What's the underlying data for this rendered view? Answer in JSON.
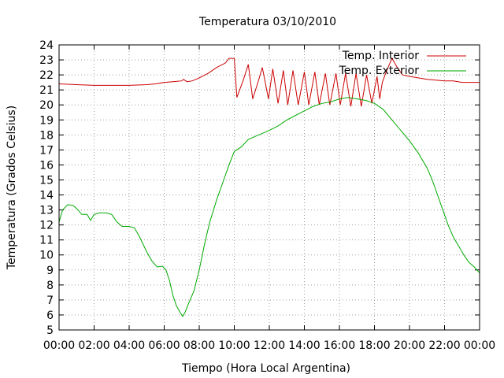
{
  "chart_data": {
    "type": "line",
    "title": "Temperatura 03/10/2010",
    "xlabel": "Tiempo (Hora Local Argentina)",
    "ylabel": "Temperatura (Grados Celsius)",
    "x_unit": "hours",
    "xlim": [
      0,
      24
    ],
    "ylim": [
      5,
      24
    ],
    "x_ticks": [
      {
        "value": 0,
        "label": "00:00"
      },
      {
        "value": 2,
        "label": "02:00"
      },
      {
        "value": 4,
        "label": "04:00"
      },
      {
        "value": 6,
        "label": "06:00"
      },
      {
        "value": 8,
        "label": "08:00"
      },
      {
        "value": 10,
        "label": "10:00"
      },
      {
        "value": 12,
        "label": "12:00"
      },
      {
        "value": 14,
        "label": "14:00"
      },
      {
        "value": 16,
        "label": "16:00"
      },
      {
        "value": 18,
        "label": "18:00"
      },
      {
        "value": 20,
        "label": "20:00"
      },
      {
        "value": 22,
        "label": "22:00"
      },
      {
        "value": 24,
        "label": "00:00"
      }
    ],
    "y_ticks": [
      {
        "value": 5,
        "label": "5"
      },
      {
        "value": 6,
        "label": "6"
      },
      {
        "value": 7,
        "label": "7"
      },
      {
        "value": 8,
        "label": "8"
      },
      {
        "value": 9,
        "label": "9"
      },
      {
        "value": 10,
        "label": "10"
      },
      {
        "value": 11,
        "label": "11"
      },
      {
        "value": 12,
        "label": "12"
      },
      {
        "value": 13,
        "label": "13"
      },
      {
        "value": 14,
        "label": "14"
      },
      {
        "value": 15,
        "label": "15"
      },
      {
        "value": 16,
        "label": "16"
      },
      {
        "value": 17,
        "label": "17"
      },
      {
        "value": 18,
        "label": "18"
      },
      {
        "value": 19,
        "label": "19"
      },
      {
        "value": 20,
        "label": "20"
      },
      {
        "value": 21,
        "label": "21"
      },
      {
        "value": 22,
        "label": "22"
      },
      {
        "value": 23,
        "label": "23"
      },
      {
        "value": 24,
        "label": "24"
      }
    ],
    "grid": true,
    "legend_position": "top-right",
    "series": [
      {
        "name": "Temp. Interior",
        "color": "#cc0000",
        "points": [
          [
            0.0,
            21.4
          ],
          [
            1.0,
            21.35
          ],
          [
            2.0,
            21.3
          ],
          [
            3.0,
            21.3
          ],
          [
            4.0,
            21.3
          ],
          [
            5.0,
            21.35
          ],
          [
            5.5,
            21.4
          ],
          [
            6.0,
            21.5
          ],
          [
            6.5,
            21.55
          ],
          [
            7.0,
            21.6
          ],
          [
            7.1,
            21.7
          ],
          [
            7.3,
            21.55
          ],
          [
            7.6,
            21.6
          ],
          [
            8.0,
            21.8
          ],
          [
            8.5,
            22.1
          ],
          [
            9.0,
            22.5
          ],
          [
            9.5,
            22.8
          ],
          [
            9.7,
            23.1
          ],
          [
            10.0,
            23.1
          ],
          [
            10.15,
            20.5
          ],
          [
            10.5,
            21.6
          ],
          [
            10.8,
            22.7
          ],
          [
            11.05,
            20.4
          ],
          [
            11.35,
            21.5
          ],
          [
            11.6,
            22.5
          ],
          [
            11.95,
            20.4
          ],
          [
            12.2,
            22.4
          ],
          [
            12.5,
            20.1
          ],
          [
            12.8,
            22.3
          ],
          [
            13.05,
            20.0
          ],
          [
            13.35,
            22.3
          ],
          [
            13.65,
            20.0
          ],
          [
            14.0,
            22.2
          ],
          [
            14.25,
            20.0
          ],
          [
            14.6,
            22.2
          ],
          [
            14.85,
            20.0
          ],
          [
            15.2,
            22.1
          ],
          [
            15.45,
            20.0
          ],
          [
            15.8,
            22.1
          ],
          [
            16.05,
            20.0
          ],
          [
            16.35,
            22.1
          ],
          [
            16.65,
            19.9
          ],
          [
            16.95,
            22.1
          ],
          [
            17.25,
            19.9
          ],
          [
            17.55,
            22.0
          ],
          [
            17.85,
            20.1
          ],
          [
            18.15,
            21.9
          ],
          [
            18.3,
            20.4
          ],
          [
            18.45,
            21.5
          ],
          [
            18.7,
            22.3
          ],
          [
            19.0,
            23.1
          ],
          [
            19.3,
            22.5
          ],
          [
            19.6,
            22.0
          ],
          [
            20.0,
            21.9
          ],
          [
            20.5,
            21.8
          ],
          [
            21.0,
            21.7
          ],
          [
            22.0,
            21.6
          ],
          [
            22.5,
            21.6
          ],
          [
            23.0,
            21.5
          ],
          [
            23.5,
            21.5
          ],
          [
            24.0,
            21.5
          ]
        ]
      },
      {
        "name": "Temp. Exterior",
        "color": "#00aa00",
        "points": [
          [
            0.0,
            12.2
          ],
          [
            0.2,
            13.0
          ],
          [
            0.5,
            13.35
          ],
          [
            0.8,
            13.3
          ],
          [
            1.0,
            13.1
          ],
          [
            1.3,
            12.7
          ],
          [
            1.6,
            12.7
          ],
          [
            1.8,
            12.3
          ],
          [
            2.0,
            12.7
          ],
          [
            2.3,
            12.8
          ],
          [
            2.7,
            12.8
          ],
          [
            3.0,
            12.7
          ],
          [
            3.3,
            12.2
          ],
          [
            3.6,
            11.9
          ],
          [
            4.0,
            11.9
          ],
          [
            4.3,
            11.8
          ],
          [
            4.6,
            11.2
          ],
          [
            5.0,
            10.2
          ],
          [
            5.3,
            9.6
          ],
          [
            5.6,
            9.2
          ],
          [
            5.9,
            9.25
          ],
          [
            6.1,
            9.0
          ],
          [
            6.3,
            8.3
          ],
          [
            6.5,
            7.3
          ],
          [
            6.7,
            6.6
          ],
          [
            6.9,
            6.2
          ],
          [
            7.05,
            5.9
          ],
          [
            7.2,
            6.2
          ],
          [
            7.4,
            6.8
          ],
          [
            7.7,
            7.6
          ],
          [
            8.0,
            9.0
          ],
          [
            8.3,
            10.7
          ],
          [
            8.6,
            12.2
          ],
          [
            9.0,
            13.7
          ],
          [
            9.4,
            15.0
          ],
          [
            9.7,
            16.0
          ],
          [
            10.0,
            16.9
          ],
          [
            10.4,
            17.2
          ],
          [
            10.8,
            17.7
          ],
          [
            11.2,
            17.9
          ],
          [
            11.6,
            18.1
          ],
          [
            12.0,
            18.3
          ],
          [
            12.5,
            18.6
          ],
          [
            13.0,
            19.0
          ],
          [
            13.5,
            19.3
          ],
          [
            14.0,
            19.6
          ],
          [
            14.5,
            19.9
          ],
          [
            15.0,
            20.1
          ],
          [
            15.5,
            20.2
          ],
          [
            16.0,
            20.4
          ],
          [
            16.5,
            20.5
          ],
          [
            17.0,
            20.4
          ],
          [
            17.5,
            20.3
          ],
          [
            18.0,
            20.1
          ],
          [
            18.5,
            19.7
          ],
          [
            19.0,
            19.0
          ],
          [
            19.5,
            18.3
          ],
          [
            20.0,
            17.6
          ],
          [
            20.5,
            16.8
          ],
          [
            21.0,
            15.8
          ],
          [
            21.3,
            15.0
          ],
          [
            21.6,
            14.0
          ],
          [
            21.9,
            13.0
          ],
          [
            22.2,
            12.0
          ],
          [
            22.5,
            11.2
          ],
          [
            22.8,
            10.6
          ],
          [
            23.1,
            10.0
          ],
          [
            23.4,
            9.5
          ],
          [
            23.7,
            9.2
          ],
          [
            24.0,
            8.8
          ]
        ]
      }
    ]
  }
}
